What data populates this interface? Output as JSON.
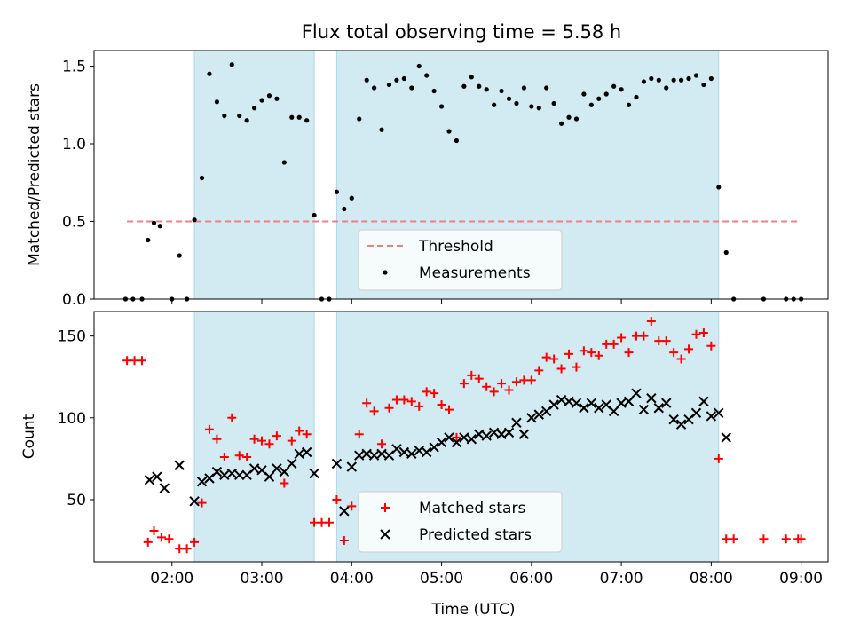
{
  "title": "Flux total observing time = 5.58 h",
  "colors": {
    "shade": "#add8e6",
    "threshold": "#f08080",
    "matched": "#ff0000",
    "predicted": "#000000",
    "measurement": "#000000"
  },
  "chart_data": [
    {
      "type": "scatter",
      "panel": "top",
      "title": "Flux total observing time = 5.58 h",
      "xlabel": "",
      "ylabel": "Matched/Predicted stars",
      "xlim": [
        "01:08",
        "09:18"
      ],
      "ylim": [
        0,
        1.6
      ],
      "y_ticks": [
        "0.0",
        "0.5",
        "1.0",
        "1.5"
      ],
      "x_ticks": [
        "02:00",
        "03:00",
        "04:00",
        "05:00",
        "06:00",
        "07:00",
        "08:00",
        "09:00"
      ],
      "shaded_intervals": [
        [
          "02:15",
          "03:35"
        ],
        [
          "03:50",
          "08:05"
        ]
      ],
      "legend_position": "lower-center",
      "threshold": {
        "name": "Threshold",
        "value": 0.5,
        "x_range": [
          "01:30",
          "08:58"
        ]
      },
      "series": [
        {
          "name": "Measurements",
          "points": [
            [
              "01:29",
              0
            ],
            [
              "01:34",
              0
            ],
            [
              "01:40",
              0
            ],
            [
              "01:44",
              0.38
            ],
            [
              "01:48",
              0.49
            ],
            [
              "01:52",
              0.47
            ],
            [
              "02:00",
              0
            ],
            [
              "02:05",
              0.28
            ],
            [
              "02:10",
              0
            ],
            [
              "02:15",
              0.51
            ],
            [
              "02:20",
              0.78
            ],
            [
              "02:25",
              1.45
            ],
            [
              "02:30",
              1.27
            ],
            [
              "02:35",
              1.18
            ],
            [
              "02:40",
              1.51
            ],
            [
              "02:45",
              1.18
            ],
            [
              "02:50",
              1.15
            ],
            [
              "02:55",
              1.23
            ],
            [
              "03:00",
              1.28
            ],
            [
              "03:05",
              1.31
            ],
            [
              "03:10",
              1.29
            ],
            [
              "03:15",
              0.88
            ],
            [
              "03:20",
              1.17
            ],
            [
              "03:25",
              1.17
            ],
            [
              "03:30",
              1.15
            ],
            [
              "03:35",
              0.54
            ],
            [
              "03:40",
              0
            ],
            [
              "03:45",
              0
            ],
            [
              "03:50",
              0.69
            ],
            [
              "03:55",
              0.58
            ],
            [
              "04:00",
              0.65
            ],
            [
              "04:05",
              1.16
            ],
            [
              "04:10",
              1.41
            ],
            [
              "04:15",
              1.36
            ],
            [
              "04:20",
              1.09
            ],
            [
              "04:25",
              1.38
            ],
            [
              "04:30",
              1.41
            ],
            [
              "04:35",
              1.42
            ],
            [
              "04:40",
              1.36
            ],
            [
              "04:45",
              1.5
            ],
            [
              "04:50",
              1.44
            ],
            [
              "04:55",
              1.34
            ],
            [
              "05:00",
              1.24
            ],
            [
              "05:05",
              1.08
            ],
            [
              "05:10",
              1.02
            ],
            [
              "05:15",
              1.37
            ],
            [
              "05:20",
              1.43
            ],
            [
              "05:25",
              1.37
            ],
            [
              "05:30",
              1.35
            ],
            [
              "05:35",
              1.25
            ],
            [
              "05:40",
              1.34
            ],
            [
              "05:45",
              1.29
            ],
            [
              "05:50",
              1.26
            ],
            [
              "05:55",
              1.36
            ],
            [
              "06:00",
              1.24
            ],
            [
              "06:05",
              1.23
            ],
            [
              "06:10",
              1.36
            ],
            [
              "06:15",
              1.26
            ],
            [
              "06:20",
              1.13
            ],
            [
              "06:25",
              1.17
            ],
            [
              "06:30",
              1.16
            ],
            [
              "06:35",
              1.32
            ],
            [
              "06:40",
              1.25
            ],
            [
              "06:45",
              1.29
            ],
            [
              "06:50",
              1.32
            ],
            [
              "06:55",
              1.37
            ],
            [
              "07:00",
              1.35
            ],
            [
              "07:05",
              1.25
            ],
            [
              "07:10",
              1.3
            ],
            [
              "07:15",
              1.4
            ],
            [
              "07:20",
              1.42
            ],
            [
              "07:25",
              1.41
            ],
            [
              "07:30",
              1.36
            ],
            [
              "07:35",
              1.41
            ],
            [
              "07:40",
              1.41
            ],
            [
              "07:45",
              1.42
            ],
            [
              "07:50",
              1.44
            ],
            [
              "07:55",
              1.38
            ],
            [
              "08:00",
              1.42
            ],
            [
              "08:05",
              0.72
            ],
            [
              "08:10",
              0.3
            ],
            [
              "08:15",
              0
            ],
            [
              "08:35",
              0
            ],
            [
              "08:50",
              0
            ],
            [
              "08:55",
              0
            ],
            [
              "09:00",
              0
            ]
          ]
        }
      ]
    },
    {
      "type": "scatter",
      "panel": "bottom",
      "xlabel": "Time (UTC)",
      "ylabel": "Count",
      "xlim": [
        "01:08",
        "09:18"
      ],
      "ylim": [
        12,
        165
      ],
      "y_ticks": [
        "50",
        "100",
        "150"
      ],
      "x_ticks": [
        "02:00",
        "03:00",
        "04:00",
        "05:00",
        "06:00",
        "07:00",
        "08:00",
        "09:00"
      ],
      "shaded_intervals": [
        [
          "02:15",
          "03:35"
        ],
        [
          "03:50",
          "08:05"
        ]
      ],
      "legend_position": "lower-center",
      "series": [
        {
          "name": "Matched stars",
          "marker": "+",
          "points": [
            [
              "01:30",
              135
            ],
            [
              "01:35",
              135
            ],
            [
              "01:40",
              135
            ],
            [
              "01:44",
              24
            ],
            [
              "01:48",
              31
            ],
            [
              "01:53",
              27
            ],
            [
              "01:58",
              26
            ],
            [
              "02:05",
              20
            ],
            [
              "02:10",
              20
            ],
            [
              "02:15",
              24
            ],
            [
              "02:20",
              48
            ],
            [
              "02:25",
              93
            ],
            [
              "02:30",
              87
            ],
            [
              "02:35",
              76
            ],
            [
              "02:40",
              100
            ],
            [
              "02:45",
              77
            ],
            [
              "02:50",
              76
            ],
            [
              "02:55",
              87
            ],
            [
              "03:00",
              86
            ],
            [
              "03:05",
              84
            ],
            [
              "03:10",
              89
            ],
            [
              "03:15",
              60
            ],
            [
              "03:20",
              86
            ],
            [
              "03:25",
              92
            ],
            [
              "03:30",
              90
            ],
            [
              "03:35",
              36
            ],
            [
              "03:40",
              36
            ],
            [
              "03:45",
              36
            ],
            [
              "03:50",
              50
            ],
            [
              "03:55",
              25
            ],
            [
              "04:00",
              46
            ],
            [
              "04:05",
              90
            ],
            [
              "04:10",
              109
            ],
            [
              "04:15",
              104
            ],
            [
              "04:20",
              84
            ],
            [
              "04:25",
              106
            ],
            [
              "04:30",
              111
            ],
            [
              "04:35",
              111
            ],
            [
              "04:40",
              110
            ],
            [
              "04:45",
              107
            ],
            [
              "04:50",
              116
            ],
            [
              "04:55",
              115
            ],
            [
              "05:00",
              108
            ],
            [
              "05:05",
              105
            ],
            [
              "05:10",
              88
            ],
            [
              "05:15",
              121
            ],
            [
              "05:20",
              126
            ],
            [
              "05:25",
              124
            ],
            [
              "05:30",
              119
            ],
            [
              "05:35",
              116
            ],
            [
              "05:40",
              121
            ],
            [
              "05:45",
              117
            ],
            [
              "05:50",
              122
            ],
            [
              "05:55",
              123
            ],
            [
              "06:00",
              123
            ],
            [
              "06:05",
              129
            ],
            [
              "06:10",
              137
            ],
            [
              "06:15",
              136
            ],
            [
              "06:20",
              130
            ],
            [
              "06:25",
              139
            ],
            [
              "06:30",
              131
            ],
            [
              "06:35",
              141
            ],
            [
              "06:40",
              140
            ],
            [
              "06:45",
              138
            ],
            [
              "06:50",
              145
            ],
            [
              "06:55",
              145
            ],
            [
              "07:00",
              149
            ],
            [
              "07:05",
              140
            ],
            [
              "07:10",
              150
            ],
            [
              "07:15",
              150
            ],
            [
              "07:20",
              159
            ],
            [
              "07:25",
              147
            ],
            [
              "07:30",
              147
            ],
            [
              "07:35",
              140
            ],
            [
              "07:40",
              136
            ],
            [
              "07:45",
              142
            ],
            [
              "07:50",
              151
            ],
            [
              "07:55",
              152
            ],
            [
              "08:00",
              144
            ],
            [
              "08:05",
              75
            ],
            [
              "08:10",
              26
            ],
            [
              "08:15",
              26
            ],
            [
              "08:35",
              26
            ],
            [
              "08:50",
              26
            ],
            [
              "08:58",
              26
            ],
            [
              "09:00",
              26
            ]
          ]
        },
        {
          "name": "Predicted stars",
          "marker": "x",
          "points": [
            [
              "01:45",
              62
            ],
            [
              "01:50",
              64
            ],
            [
              "01:55",
              57
            ],
            [
              "02:05",
              71
            ],
            [
              "02:15",
              49
            ],
            [
              "02:20",
              61
            ],
            [
              "02:25",
              63
            ],
            [
              "02:30",
              67
            ],
            [
              "02:35",
              65
            ],
            [
              "02:40",
              66
            ],
            [
              "02:45",
              65
            ],
            [
              "02:50",
              65
            ],
            [
              "02:55",
              69
            ],
            [
              "03:00",
              68
            ],
            [
              "03:05",
              64
            ],
            [
              "03:10",
              69
            ],
            [
              "03:15",
              67
            ],
            [
              "03:20",
              72
            ],
            [
              "03:25",
              78
            ],
            [
              "03:30",
              79
            ],
            [
              "03:35",
              66
            ],
            [
              "03:50",
              72
            ],
            [
              "03:55",
              43
            ],
            [
              "04:00",
              70
            ],
            [
              "04:05",
              77
            ],
            [
              "04:10",
              78
            ],
            [
              "04:15",
              77
            ],
            [
              "04:20",
              78
            ],
            [
              "04:25",
              77
            ],
            [
              "04:30",
              81
            ],
            [
              "04:35",
              79
            ],
            [
              "04:40",
              78
            ],
            [
              "04:45",
              80
            ],
            [
              "04:50",
              79
            ],
            [
              "04:55",
              82
            ],
            [
              "05:00",
              85
            ],
            [
              "05:05",
              88
            ],
            [
              "05:10",
              85
            ],
            [
              "05:15",
              88
            ],
            [
              "05:20",
              87
            ],
            [
              "05:25",
              90
            ],
            [
              "05:30",
              89
            ],
            [
              "05:35",
              91
            ],
            [
              "05:40",
              90
            ],
            [
              "05:45",
              91
            ],
            [
              "05:50",
              97
            ],
            [
              "05:55",
              90
            ],
            [
              "06:00",
              100
            ],
            [
              "06:05",
              102
            ],
            [
              "06:10",
              104
            ],
            [
              "06:15",
              108
            ],
            [
              "06:20",
              111
            ],
            [
              "06:25",
              110
            ],
            [
              "06:30",
              109
            ],
            [
              "06:35",
              106
            ],
            [
              "06:40",
              109
            ],
            [
              "06:45",
              106
            ],
            [
              "06:50",
              108
            ],
            [
              "06:55",
              104
            ],
            [
              "07:00",
              109
            ],
            [
              "07:05",
              110
            ],
            [
              "07:10",
              115
            ],
            [
              "07:15",
              105
            ],
            [
              "07:20",
              112
            ],
            [
              "07:25",
              106
            ],
            [
              "07:30",
              109
            ],
            [
              "07:35",
              99
            ],
            [
              "07:40",
              96
            ],
            [
              "07:45",
              99
            ],
            [
              "07:50",
              103
            ],
            [
              "07:55",
              110
            ],
            [
              "08:00",
              101
            ],
            [
              "08:05",
              103
            ],
            [
              "08:10",
              88
            ]
          ]
        }
      ]
    }
  ]
}
